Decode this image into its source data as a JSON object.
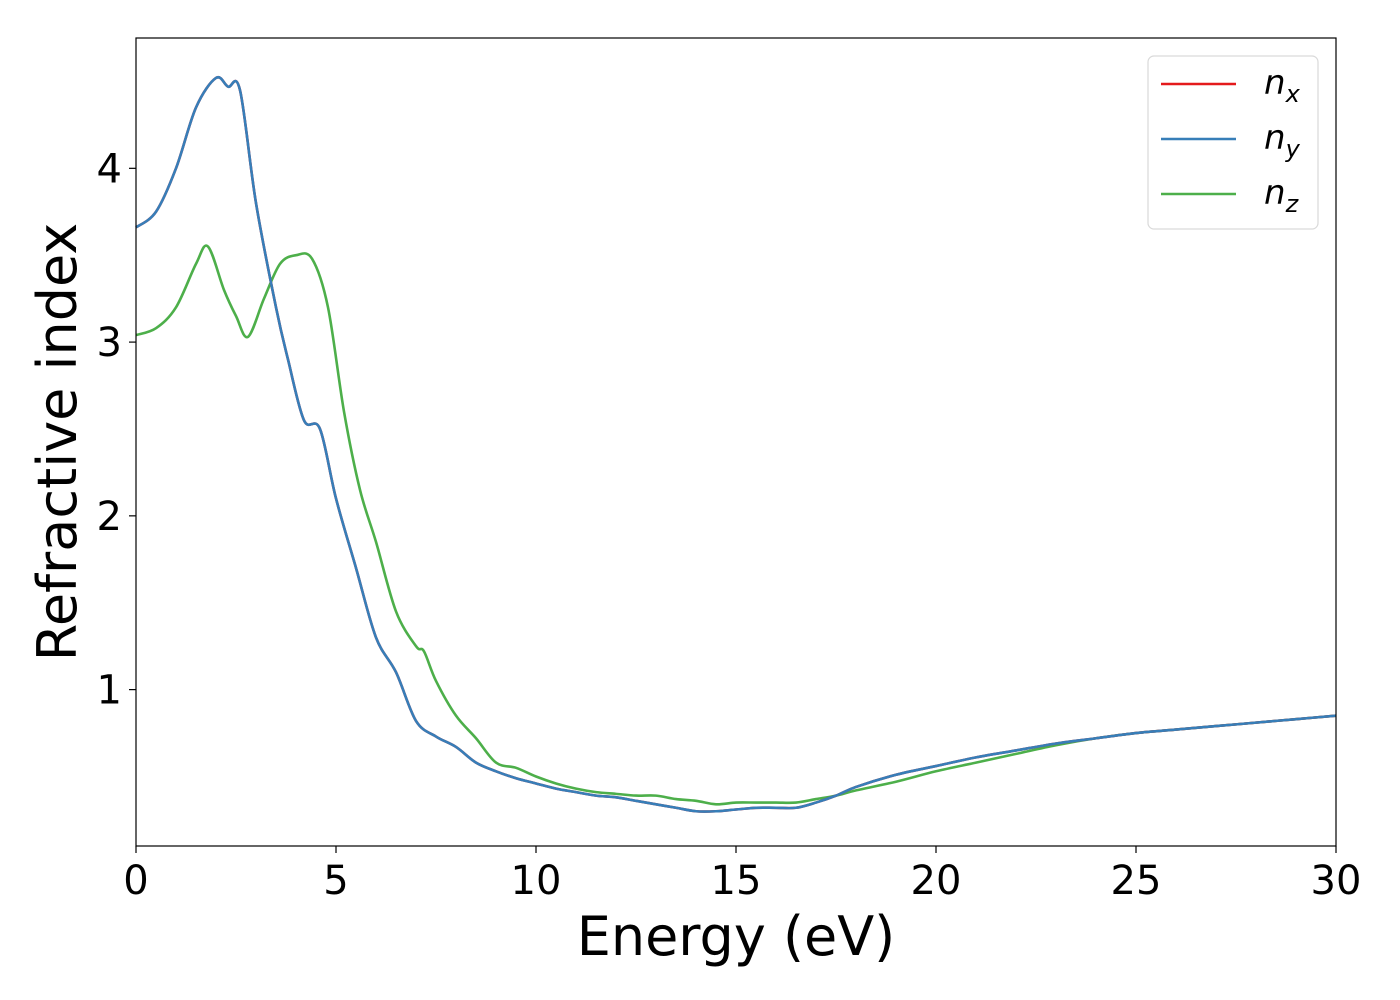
{
  "chart_data": {
    "type": "line",
    "xlabel": "Energy (eV)",
    "ylabel": "Refractive index",
    "xlim": [
      0,
      30
    ],
    "ylim": [
      0.1,
      4.75
    ],
    "xticks": [
      0,
      5,
      10,
      15,
      20,
      25,
      30
    ],
    "xtick_labels": [
      "0",
      "5",
      "10",
      "15",
      "20",
      "25",
      "30"
    ],
    "yticks": [
      1,
      2,
      3,
      4
    ],
    "ytick_labels": [
      "1",
      "2",
      "3",
      "4"
    ],
    "grid": false,
    "legend_position": "top-right",
    "series": [
      {
        "name": "n",
        "subscript": "x",
        "color": "#e41a1c",
        "x": [
          0,
          0.5,
          1.0,
          1.5,
          2.0,
          2.3,
          2.6,
          3.0,
          3.5,
          3.8,
          4.2,
          4.6,
          5.0,
          5.5,
          6.0,
          6.5,
          7.0,
          7.5,
          8.0,
          8.5,
          9.0,
          9.5,
          10.0,
          10.5,
          11.0,
          11.5,
          12.0,
          12.5,
          13.0,
          13.5,
          14.0,
          14.5,
          15.0,
          15.5,
          16.0,
          16.5,
          17.0,
          17.5,
          18.0,
          19.0,
          20.0,
          21.0,
          22.0,
          23.0,
          24.0,
          25.0,
          26.0,
          27.0,
          28.0,
          29.0,
          30.0
        ],
        "y": [
          3.66,
          3.75,
          4.0,
          4.35,
          4.52,
          4.47,
          4.45,
          3.8,
          3.2,
          2.9,
          2.55,
          2.5,
          2.1,
          1.7,
          1.3,
          1.1,
          0.82,
          0.73,
          0.67,
          0.58,
          0.53,
          0.49,
          0.46,
          0.43,
          0.41,
          0.39,
          0.38,
          0.36,
          0.34,
          0.32,
          0.3,
          0.3,
          0.31,
          0.32,
          0.32,
          0.32,
          0.35,
          0.39,
          0.44,
          0.51,
          0.56,
          0.61,
          0.65,
          0.69,
          0.72,
          0.75,
          0.77,
          0.79,
          0.81,
          0.83,
          0.85
        ]
      },
      {
        "name": "n",
        "subscript": "y",
        "color": "#377eb8",
        "x": [
          0,
          0.5,
          1.0,
          1.5,
          2.0,
          2.3,
          2.6,
          3.0,
          3.5,
          3.8,
          4.2,
          4.6,
          5.0,
          5.5,
          6.0,
          6.5,
          7.0,
          7.5,
          8.0,
          8.5,
          9.0,
          9.5,
          10.0,
          10.5,
          11.0,
          11.5,
          12.0,
          12.5,
          13.0,
          13.5,
          14.0,
          14.5,
          15.0,
          15.5,
          16.0,
          16.5,
          17.0,
          17.5,
          18.0,
          19.0,
          20.0,
          21.0,
          22.0,
          23.0,
          24.0,
          25.0,
          26.0,
          27.0,
          28.0,
          29.0,
          30.0
        ],
        "y": [
          3.66,
          3.75,
          4.0,
          4.35,
          4.52,
          4.47,
          4.45,
          3.8,
          3.2,
          2.9,
          2.55,
          2.5,
          2.1,
          1.7,
          1.3,
          1.1,
          0.82,
          0.73,
          0.67,
          0.58,
          0.53,
          0.49,
          0.46,
          0.43,
          0.41,
          0.39,
          0.38,
          0.36,
          0.34,
          0.32,
          0.3,
          0.3,
          0.31,
          0.32,
          0.32,
          0.32,
          0.35,
          0.39,
          0.44,
          0.51,
          0.56,
          0.61,
          0.65,
          0.69,
          0.72,
          0.75,
          0.77,
          0.79,
          0.81,
          0.83,
          0.85
        ]
      },
      {
        "name": "n",
        "subscript": "z",
        "color": "#4daf4a",
        "x": [
          0,
          0.5,
          1.0,
          1.5,
          1.8,
          2.2,
          2.5,
          2.8,
          3.2,
          3.6,
          4.0,
          4.4,
          4.8,
          5.2,
          5.6,
          6.0,
          6.5,
          7.0,
          7.2,
          7.5,
          8.0,
          8.5,
          9.0,
          9.5,
          10.0,
          10.5,
          11.0,
          11.5,
          12.0,
          12.5,
          13.0,
          13.5,
          14.0,
          14.5,
          15.0,
          15.5,
          16.0,
          16.5,
          17.0,
          17.5,
          18.0,
          19.0,
          20.0,
          21.0,
          22.0,
          23.0,
          24.0,
          25.0,
          26.0,
          27.0,
          28.0,
          29.0,
          30.0
        ],
        "y": [
          3.04,
          3.08,
          3.2,
          3.45,
          3.55,
          3.3,
          3.15,
          3.03,
          3.25,
          3.45,
          3.5,
          3.48,
          3.2,
          2.6,
          2.15,
          1.85,
          1.45,
          1.25,
          1.22,
          1.05,
          0.85,
          0.72,
          0.58,
          0.55,
          0.5,
          0.46,
          0.43,
          0.41,
          0.4,
          0.39,
          0.39,
          0.37,
          0.36,
          0.34,
          0.35,
          0.35,
          0.35,
          0.35,
          0.37,
          0.39,
          0.42,
          0.47,
          0.53,
          0.58,
          0.63,
          0.68,
          0.72,
          0.75,
          0.77,
          0.79,
          0.81,
          0.83,
          0.85
        ]
      }
    ]
  }
}
